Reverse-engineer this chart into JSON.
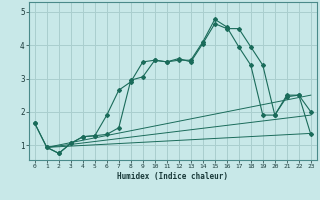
{
  "xlabel": "Humidex (Indice chaleur)",
  "background_color": "#c8e8e8",
  "grid_color": "#aacece",
  "line_color": "#1a6b5a",
  "xlim": [
    -0.5,
    23.5
  ],
  "ylim": [
    0.55,
    5.3
  ],
  "yticks": [
    1,
    2,
    3,
    4,
    5
  ],
  "xticks": [
    0,
    1,
    2,
    3,
    4,
    5,
    6,
    7,
    8,
    9,
    10,
    11,
    12,
    13,
    14,
    15,
    16,
    17,
    18,
    19,
    20,
    21,
    22,
    23
  ],
  "line1_x": [
    0,
    1,
    2,
    3,
    4,
    5,
    6,
    7,
    8,
    9,
    10,
    11,
    12,
    13,
    14,
    15,
    16,
    17,
    18,
    19,
    20,
    21,
    22,
    23
  ],
  "line1_y": [
    1.65,
    0.93,
    0.75,
    1.05,
    1.25,
    1.28,
    1.9,
    2.65,
    2.9,
    3.5,
    3.55,
    3.5,
    3.6,
    3.5,
    4.05,
    4.65,
    4.5,
    4.5,
    3.95,
    3.4,
    1.9,
    2.5,
    2.5,
    2.0
  ],
  "line2_x": [
    0,
    1,
    2,
    3,
    4,
    5,
    6,
    7,
    8,
    9,
    10,
    11,
    12,
    13,
    14,
    15,
    16,
    17,
    18,
    19,
    20,
    21,
    22,
    23
  ],
  "line2_y": [
    1.65,
    0.93,
    0.75,
    1.05,
    1.25,
    1.28,
    1.32,
    1.52,
    2.95,
    3.05,
    3.55,
    3.5,
    3.55,
    3.55,
    4.1,
    4.78,
    4.55,
    3.95,
    3.4,
    1.9,
    1.9,
    2.45,
    2.5,
    1.32
  ],
  "line3_x": [
    1,
    23
  ],
  "line3_y": [
    0.93,
    1.35
  ],
  "line4_x": [
    1,
    23
  ],
  "line4_y": [
    0.93,
    1.9
  ],
  "line5_x": [
    1,
    23
  ],
  "line5_y": [
    0.93,
    2.5
  ]
}
